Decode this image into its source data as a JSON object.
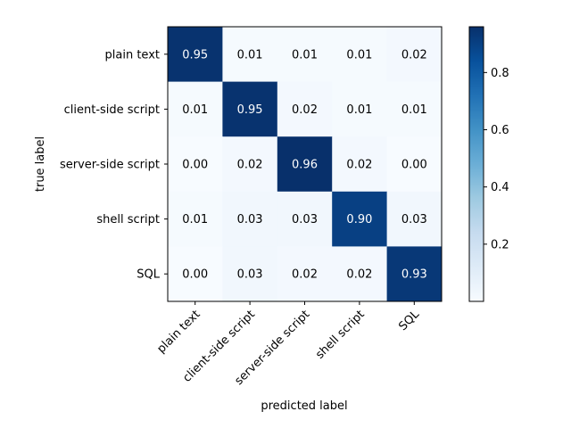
{
  "chart_data": {
    "type": "heatmap",
    "title": "",
    "xlabel": "predicted label",
    "ylabel": "true label",
    "x_categories": [
      "plain text",
      "client-side script",
      "server-side script",
      "shell script",
      "SQL"
    ],
    "y_categories": [
      "plain text",
      "client-side script",
      "server-side script",
      "shell script",
      "SQL"
    ],
    "values": [
      [
        0.95,
        0.01,
        0.01,
        0.01,
        0.02
      ],
      [
        0.01,
        0.95,
        0.02,
        0.01,
        0.01
      ],
      [
        0.0,
        0.02,
        0.96,
        0.02,
        0.0
      ],
      [
        0.01,
        0.03,
        0.03,
        0.9,
        0.03
      ],
      [
        0.0,
        0.03,
        0.02,
        0.02,
        0.93
      ]
    ],
    "value_labels": [
      [
        "0.95",
        "0.01",
        "0.01",
        "0.01",
        "0.02"
      ],
      [
        "0.01",
        "0.95",
        "0.02",
        "0.01",
        "0.01"
      ],
      [
        "0.00",
        "0.02",
        "0.96",
        "0.02",
        "0.00"
      ],
      [
        "0.01",
        "0.03",
        "0.03",
        "0.90",
        "0.03"
      ],
      [
        "0.00",
        "0.03",
        "0.02",
        "0.02",
        "0.93"
      ]
    ],
    "colormap": "Blues",
    "colorbar": {
      "range": [
        0.0,
        0.96
      ],
      "ticks": [
        0.2,
        0.4,
        0.6,
        0.8
      ],
      "tick_labels": [
        "0.2",
        "0.4",
        "0.6",
        "0.8"
      ]
    }
  }
}
